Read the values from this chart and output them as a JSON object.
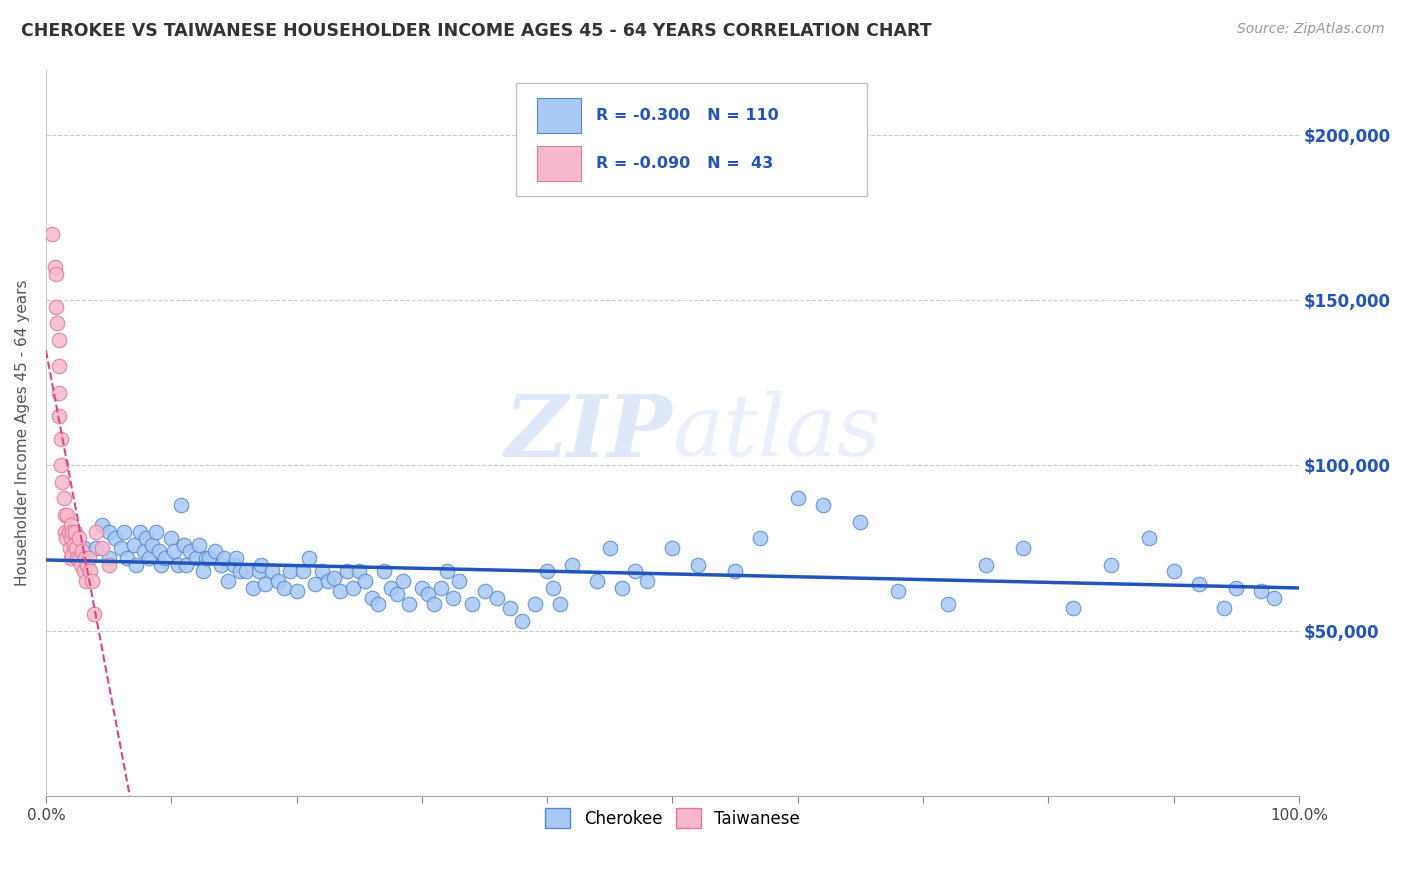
{
  "title": "CHEROKEE VS TAIWANESE HOUSEHOLDER INCOME AGES 45 - 64 YEARS CORRELATION CHART",
  "source": "Source: ZipAtlas.com",
  "ylabel": "Householder Income Ages 45 - 64 years",
  "ytick_labels": [
    "$50,000",
    "$100,000",
    "$150,000",
    "$200,000"
  ],
  "ytick_values": [
    50000,
    100000,
    150000,
    200000
  ],
  "xlim": [
    0.0,
    1.0
  ],
  "ylim": [
    0,
    220000
  ],
  "watermark": "ZIPatlas",
  "cherokee_color": "#a8c8f5",
  "cherokee_edge_color": "#5588cc",
  "taiwanese_color": "#f8b8cc",
  "taiwanese_edge_color": "#dd7799",
  "trend_cherokee_color": "#2255bb",
  "trend_taiwanese_color": "#dd4488",
  "background_color": "#ffffff",
  "grid_color": "#cccccc",
  "title_color": "#333333",
  "right_ytick_color": "#2255bb",
  "cherokee_x": [
    0.02,
    0.03,
    0.04,
    0.045,
    0.05,
    0.05,
    0.055,
    0.06,
    0.062,
    0.065,
    0.07,
    0.072,
    0.075,
    0.078,
    0.08,
    0.082,
    0.085,
    0.088,
    0.09,
    0.092,
    0.095,
    0.1,
    0.102,
    0.105,
    0.108,
    0.11,
    0.112,
    0.115,
    0.12,
    0.122,
    0.125,
    0.128,
    0.13,
    0.135,
    0.14,
    0.142,
    0.145,
    0.15,
    0.152,
    0.155,
    0.16,
    0.165,
    0.17,
    0.172,
    0.175,
    0.18,
    0.185,
    0.19,
    0.195,
    0.2,
    0.205,
    0.21,
    0.215,
    0.22,
    0.225,
    0.23,
    0.235,
    0.24,
    0.245,
    0.25,
    0.255,
    0.26,
    0.265,
    0.27,
    0.275,
    0.28,
    0.285,
    0.29,
    0.3,
    0.305,
    0.31,
    0.315,
    0.32,
    0.325,
    0.33,
    0.34,
    0.35,
    0.36,
    0.37,
    0.38,
    0.39,
    0.4,
    0.405,
    0.41,
    0.42,
    0.44,
    0.45,
    0.46,
    0.47,
    0.48,
    0.5,
    0.52,
    0.55,
    0.57,
    0.6,
    0.62,
    0.65,
    0.68,
    0.72,
    0.75,
    0.78,
    0.82,
    0.85,
    0.88,
    0.9,
    0.92,
    0.94,
    0.95,
    0.97,
    0.98
  ],
  "cherokee_y": [
    80000,
    75000,
    75000,
    82000,
    80000,
    72000,
    78000,
    75000,
    80000,
    72000,
    76000,
    70000,
    80000,
    74000,
    78000,
    72000,
    76000,
    80000,
    74000,
    70000,
    72000,
    78000,
    74000,
    70000,
    88000,
    76000,
    70000,
    74000,
    72000,
    76000,
    68000,
    72000,
    72000,
    74000,
    70000,
    72000,
    65000,
    70000,
    72000,
    68000,
    68000,
    63000,
    68000,
    70000,
    64000,
    68000,
    65000,
    63000,
    68000,
    62000,
    68000,
    72000,
    64000,
    68000,
    65000,
    66000,
    62000,
    68000,
    63000,
    68000,
    65000,
    60000,
    58000,
    68000,
    63000,
    61000,
    65000,
    58000,
    63000,
    61000,
    58000,
    63000,
    68000,
    60000,
    65000,
    58000,
    62000,
    60000,
    57000,
    53000,
    58000,
    68000,
    63000,
    58000,
    70000,
    65000,
    75000,
    63000,
    68000,
    65000,
    75000,
    70000,
    68000,
    78000,
    90000,
    88000,
    83000,
    62000,
    58000,
    70000,
    75000,
    57000,
    70000,
    78000,
    68000,
    64000,
    57000,
    63000,
    62000,
    60000
  ],
  "taiwanese_x": [
    0.005,
    0.007,
    0.008,
    0.008,
    0.009,
    0.01,
    0.01,
    0.01,
    0.01,
    0.012,
    0.012,
    0.013,
    0.014,
    0.015,
    0.015,
    0.016,
    0.017,
    0.018,
    0.019,
    0.02,
    0.02,
    0.02,
    0.021,
    0.021,
    0.022,
    0.023,
    0.024,
    0.025,
    0.026,
    0.027,
    0.028,
    0.029,
    0.03,
    0.031,
    0.032,
    0.033,
    0.034,
    0.035,
    0.037,
    0.038,
    0.04,
    0.045,
    0.05
  ],
  "taiwanese_y": [
    170000,
    160000,
    158000,
    148000,
    143000,
    138000,
    130000,
    122000,
    115000,
    108000,
    100000,
    95000,
    90000,
    85000,
    80000,
    78000,
    85000,
    80000,
    75000,
    82000,
    78000,
    72000,
    80000,
    73000,
    76000,
    80000,
    75000,
    72000,
    78000,
    72000,
    70000,
    74000,
    68000,
    72000,
    65000,
    70000,
    72000,
    68000,
    65000,
    55000,
    80000,
    75000,
    70000
  ]
}
